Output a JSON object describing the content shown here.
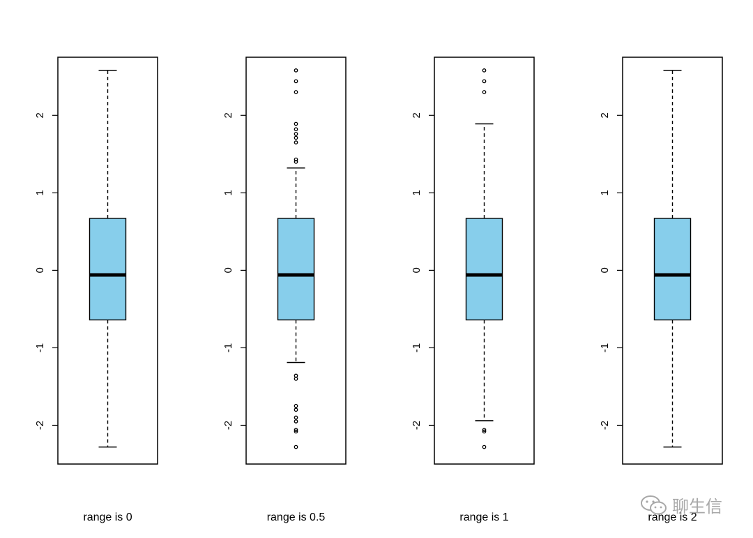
{
  "chart_data": [
    {
      "type": "boxplot",
      "xlabel": "range is 0",
      "ylim": [
        -2.5,
        2.75
      ],
      "yticks": [
        -2,
        -1,
        0,
        1,
        2
      ],
      "box": {
        "q1": -0.64,
        "median": -0.06,
        "q3": 0.67,
        "whisker_low": -2.28,
        "whisker_high": 2.58
      },
      "outliers": []
    },
    {
      "type": "boxplot",
      "xlabel": "range is 0.5",
      "ylim": [
        -2.5,
        2.75
      ],
      "yticks": [
        -2,
        -1,
        0,
        1,
        2
      ],
      "box": {
        "q1": -0.64,
        "median": -0.06,
        "q3": 0.67,
        "whisker_low": -1.19,
        "whisker_high": 1.32
      },
      "outliers": [
        2.58,
        2.44,
        2.3,
        1.89,
        1.82,
        1.76,
        1.71,
        1.65,
        1.43,
        1.4,
        -1.36,
        -1.4,
        -1.75,
        -1.8,
        -1.9,
        -1.95,
        -2.06,
        -2.08,
        -2.28
      ]
    },
    {
      "type": "boxplot",
      "xlabel": "range is 1",
      "ylim": [
        -2.5,
        2.75
      ],
      "yticks": [
        -2,
        -1,
        0,
        1,
        2
      ],
      "box": {
        "q1": -0.64,
        "median": -0.06,
        "q3": 0.67,
        "whisker_low": -1.94,
        "whisker_high": 1.89
      },
      "outliers": [
        2.58,
        2.44,
        2.3,
        -2.06,
        -2.08,
        -2.28
      ]
    },
    {
      "type": "boxplot",
      "xlabel": "range is 2",
      "ylim": [
        -2.5,
        2.75
      ],
      "yticks": [
        -2,
        -1,
        0,
        1,
        2
      ],
      "box": {
        "q1": -0.64,
        "median": -0.06,
        "q3": 0.67,
        "whisker_low": -2.28,
        "whisker_high": 2.58
      },
      "outliers": []
    }
  ],
  "colors": {
    "box_fill": "#87CEEB",
    "stroke": "#000000"
  },
  "watermark": {
    "text": "聊生信",
    "icon": "wechat-icon"
  }
}
